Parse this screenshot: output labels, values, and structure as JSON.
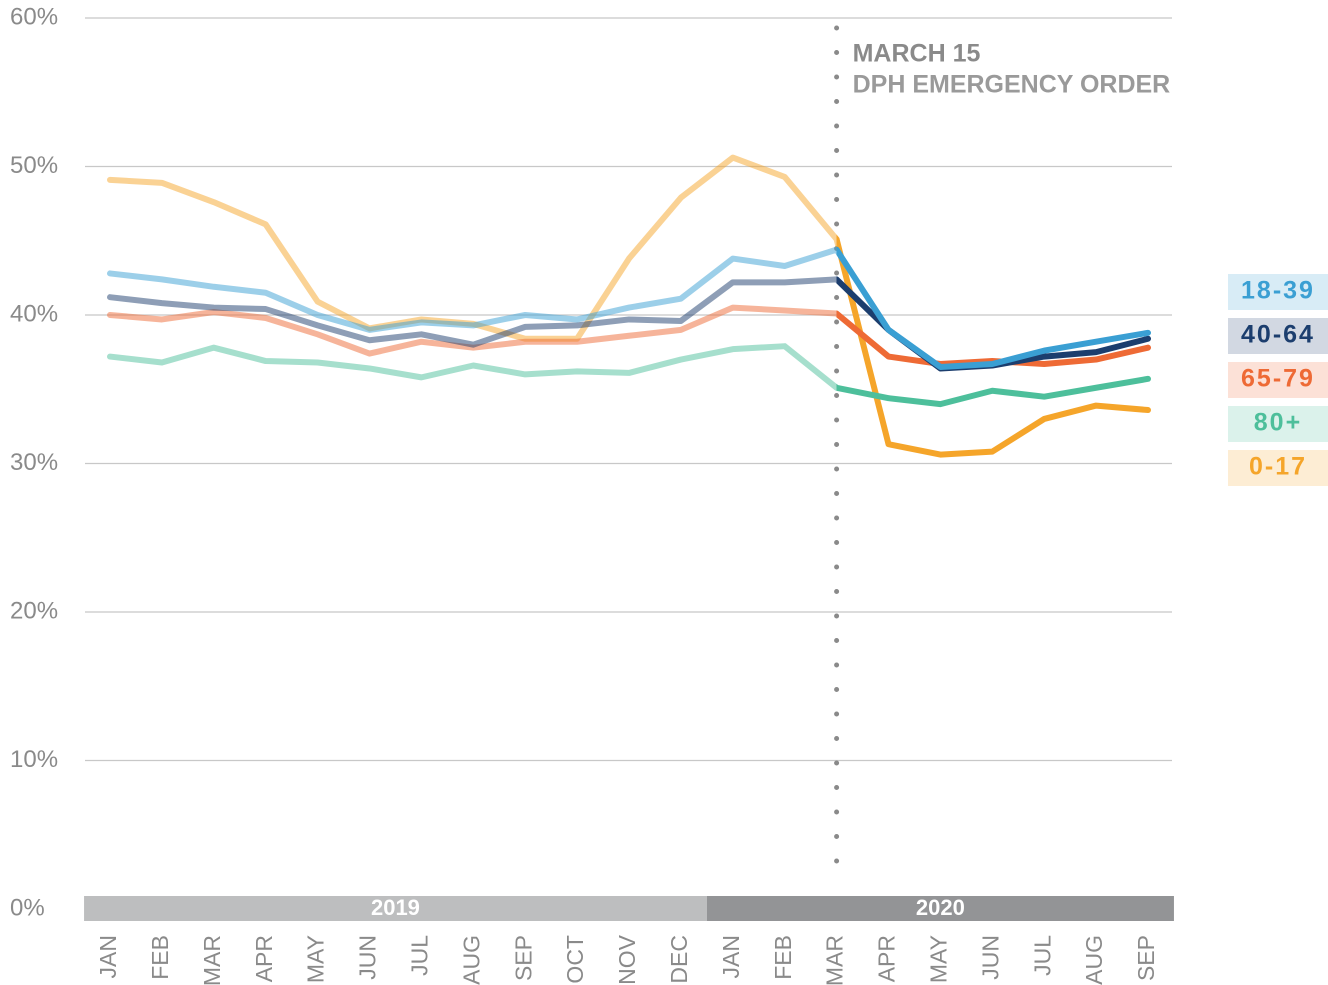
{
  "chart_data": {
    "type": "line",
    "categories": [
      "JAN",
      "FEB",
      "MAR",
      "APR",
      "MAY",
      "JUN",
      "JUL",
      "AUG",
      "SEP",
      "OCT",
      "NOV",
      "DEC",
      "JAN",
      "FEB",
      "MAR",
      "APR",
      "MAY",
      "JUN",
      "JUL",
      "AUG",
      "SEP"
    ],
    "year_groups": [
      {
        "label": "2019",
        "months": 12,
        "color": "#bdbebf"
      },
      {
        "label": "2020",
        "months": 9,
        "color": "#939496"
      }
    ],
    "annotation": {
      "lines": [
        "MARCH 15",
        "DPH EMERGENCY ORDER"
      ],
      "category": 14
    },
    "faded_before": 14,
    "ylim": [
      0,
      60
    ],
    "yticks": [
      {
        "value": 0,
        "label": "0%"
      },
      {
        "value": 10,
        "label": "10%"
      },
      {
        "value": 20,
        "label": "20%"
      },
      {
        "value": 30,
        "label": "30%"
      },
      {
        "value": 40,
        "label": "40%"
      },
      {
        "value": 50,
        "label": "50%"
      },
      {
        "value": 60,
        "label": "60%"
      }
    ],
    "grid": true,
    "legend": "right",
    "series": [
      {
        "name": "18-39",
        "color": "#3a9fd3",
        "values": [
          42.8,
          42.4,
          41.9,
          41.5,
          40.0,
          39.0,
          39.5,
          39.3,
          40.0,
          39.7,
          40.5,
          41.1,
          43.8,
          43.3,
          44.4,
          39.0,
          36.5,
          36.7,
          37.6,
          38.2,
          38.8
        ]
      },
      {
        "name": "40-64",
        "color": "#1c3e6e",
        "values": [
          41.2,
          40.8,
          40.5,
          40.4,
          39.3,
          38.3,
          38.7,
          38.0,
          39.2,
          39.3,
          39.7,
          39.6,
          42.2,
          42.2,
          42.4,
          39.0,
          36.4,
          36.6,
          37.2,
          37.5,
          38.4
        ]
      },
      {
        "name": "65-79",
        "color": "#ee6a35",
        "values": [
          40.0,
          39.7,
          40.2,
          39.8,
          38.7,
          37.4,
          38.2,
          37.8,
          38.2,
          38.2,
          38.6,
          39.0,
          40.5,
          40.3,
          40.1,
          37.2,
          36.7,
          36.9,
          36.7,
          37.0,
          37.8
        ]
      },
      {
        "name": "80+",
        "color": "#4dbf9b",
        "values": [
          37.2,
          36.8,
          37.8,
          36.9,
          36.8,
          36.4,
          35.8,
          36.6,
          36.0,
          36.2,
          36.1,
          37.0,
          37.7,
          37.9,
          35.1,
          34.4,
          34.0,
          34.9,
          34.5,
          35.1,
          35.7
        ]
      },
      {
        "name": "0-17",
        "color": "#f5a52a",
        "values": [
          49.1,
          48.9,
          47.6,
          46.1,
          40.9,
          39.1,
          39.7,
          39.4,
          38.4,
          38.4,
          43.8,
          47.9,
          50.6,
          49.3,
          45.1,
          31.3,
          30.6,
          30.8,
          33.0,
          33.9,
          33.6
        ]
      }
    ]
  }
}
